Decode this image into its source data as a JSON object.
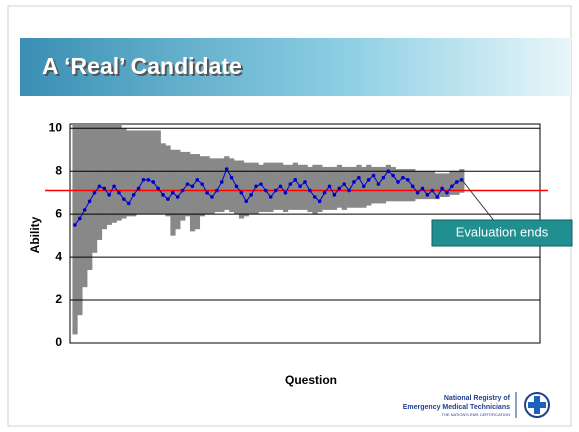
{
  "slide_title": "A ‘Real’ Candidate",
  "logo": {
    "line1": "National Registry of",
    "line2": "Emergency Medical Technicians",
    "line3": "THE NATION'S EMS CERTIFICATION"
  },
  "chart_data": {
    "type": "line",
    "ylabel": "Ability",
    "xlabel": "Question",
    "xlim": [
      0,
      96
    ],
    "ylim": [
      0,
      10.2
    ],
    "yticks": [
      0,
      2,
      4,
      6,
      8,
      10
    ],
    "grid": true,
    "annotation": "Evaluation ends",
    "reference": {
      "value": 7.1,
      "color": "#ff0000"
    },
    "band_color": "#888888",
    "x": [
      1,
      2,
      3,
      4,
      5,
      6,
      7,
      8,
      9,
      10,
      11,
      12,
      13,
      14,
      15,
      16,
      17,
      18,
      19,
      20,
      21,
      22,
      23,
      24,
      25,
      26,
      27,
      28,
      29,
      30,
      31,
      32,
      33,
      34,
      35,
      36,
      37,
      38,
      39,
      40,
      41,
      42,
      43,
      44,
      45,
      46,
      47,
      48,
      49,
      50,
      51,
      52,
      53,
      54,
      55,
      56,
      57,
      58,
      59,
      60,
      61,
      62,
      63,
      64,
      65,
      66,
      67,
      68,
      69,
      70,
      71,
      72,
      73,
      74,
      75,
      76,
      77,
      78,
      79,
      80
    ],
    "series": [
      {
        "color": "#0000cc",
        "values": [
          5.5,
          5.8,
          6.2,
          6.6,
          7.0,
          7.3,
          7.2,
          6.9,
          7.3,
          7.0,
          6.7,
          6.5,
          6.9,
          7.2,
          7.6,
          7.6,
          7.5,
          7.2,
          6.9,
          6.7,
          7.0,
          6.8,
          7.1,
          7.4,
          7.3,
          7.6,
          7.4,
          7.0,
          6.8,
          7.1,
          7.5,
          8.1,
          7.7,
          7.3,
          7.0,
          6.6,
          6.9,
          7.3,
          7.4,
          7.1,
          6.8,
          7.1,
          7.3,
          7.0,
          7.4,
          7.6,
          7.3,
          7.5,
          7.1,
          6.8,
          6.6,
          7.0,
          7.3,
          6.9,
          7.2,
          7.4,
          7.1,
          7.5,
          7.7,
          7.3,
          7.6,
          7.8,
          7.4,
          7.7,
          8.0,
          7.8,
          7.5,
          7.7,
          7.6,
          7.3,
          7.0,
          7.2,
          6.9,
          7.1,
          6.8,
          7.2,
          7.0,
          7.3,
          7.5,
          7.6
        ]
      }
    ],
    "upper": [
      10.2,
      10.2,
      10.2,
      10.2,
      10.2,
      10.2,
      10.2,
      10.2,
      10.2,
      10.2,
      10.0,
      9.9,
      9.9,
      9.9,
      9.9,
      9.9,
      9.9,
      9.9,
      9.3,
      9.2,
      9.0,
      9.0,
      8.9,
      8.9,
      8.8,
      8.8,
      8.7,
      8.7,
      8.6,
      8.6,
      8.6,
      8.7,
      8.6,
      8.5,
      8.5,
      8.4,
      8.4,
      8.4,
      8.3,
      8.4,
      8.4,
      8.4,
      8.4,
      8.3,
      8.3,
      8.4,
      8.3,
      8.3,
      8.2,
      8.3,
      8.3,
      8.2,
      8.2,
      8.2,
      8.3,
      8.2,
      8.2,
      8.2,
      8.3,
      8.2,
      8.3,
      8.2,
      8.2,
      8.2,
      8.3,
      8.2,
      8.1,
      8.1,
      8.1,
      8.1,
      8.0,
      8.0,
      8.0,
      8.0,
      7.9,
      7.9,
      7.9,
      8.0,
      8.0,
      8.1
    ],
    "lower": [
      0.4,
      1.3,
      2.6,
      3.4,
      4.2,
      4.8,
      5.3,
      5.5,
      5.6,
      5.7,
      5.8,
      5.9,
      5.9,
      6.0,
      6.0,
      6.0,
      6.0,
      6.0,
      6.0,
      5.9,
      5.0,
      5.3,
      5.7,
      5.9,
      5.2,
      5.3,
      5.9,
      6.0,
      6.0,
      6.1,
      6.1,
      6.2,
      6.1,
      6.0,
      5.8,
      5.9,
      6.0,
      6.0,
      6.1,
      6.1,
      6.1,
      6.2,
      6.2,
      6.1,
      6.2,
      6.2,
      6.2,
      6.2,
      6.1,
      6.0,
      6.1,
      6.2,
      6.2,
      6.2,
      6.3,
      6.2,
      6.3,
      6.3,
      6.3,
      6.3,
      6.4,
      6.5,
      6.5,
      6.5,
      6.6,
      6.6,
      6.6,
      6.6,
      6.6,
      6.6,
      6.7,
      6.7,
      6.7,
      6.7,
      6.7,
      6.8,
      6.8,
      6.9,
      6.9,
      7.0
    ]
  }
}
